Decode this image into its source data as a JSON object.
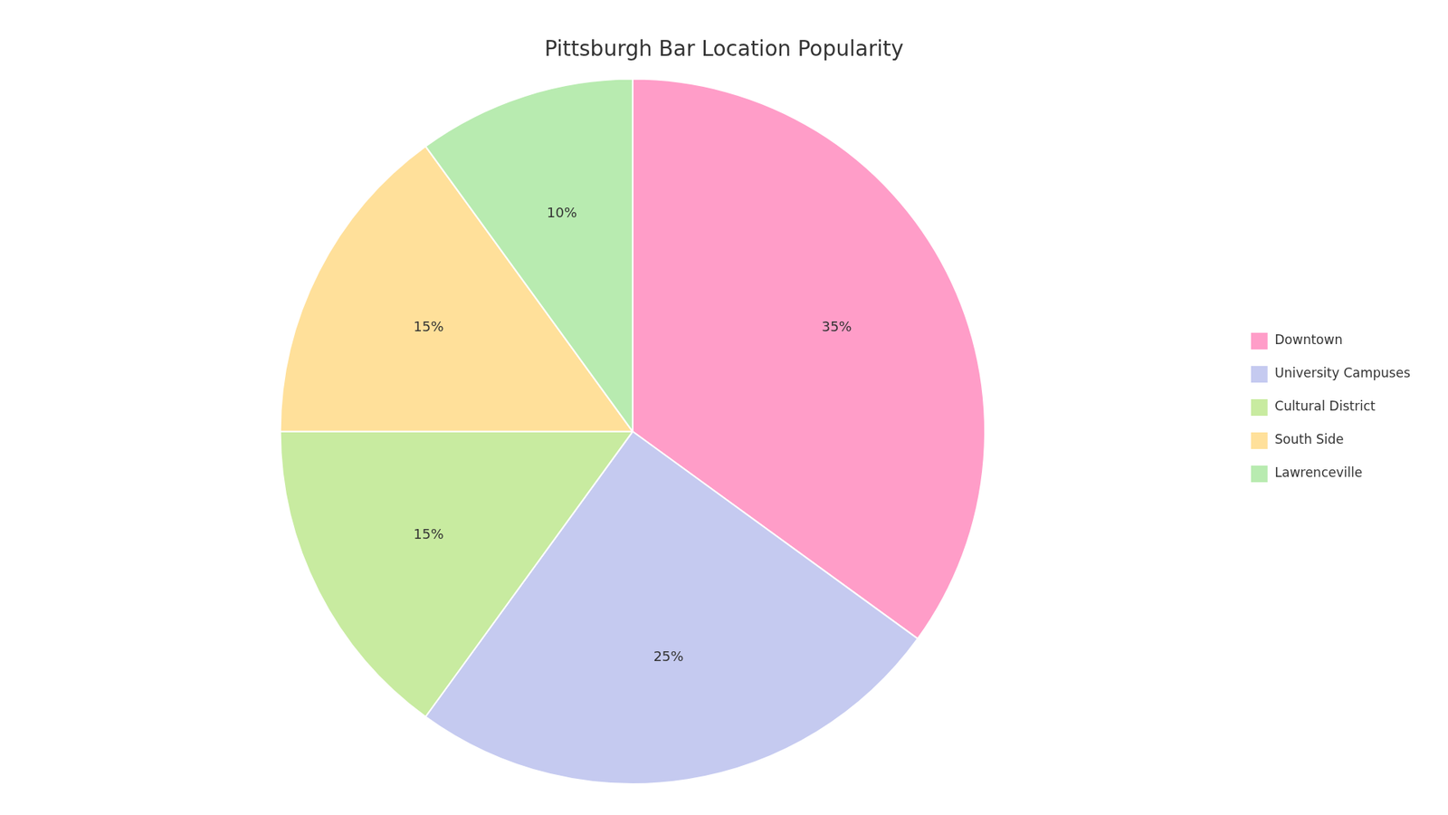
{
  "chart_data": {
    "type": "pie",
    "title": "Pittsburgh Bar Location Popularity",
    "categories": [
      "Downtown",
      "University Campuses",
      "Cultural District",
      "South Side",
      "Lawrenceville"
    ],
    "values": [
      35,
      25,
      15,
      15,
      10
    ],
    "value_labels": [
      "35%",
      "25%",
      "15%",
      "15%",
      "10%"
    ],
    "colors": [
      "#FF9DC8",
      "#C5CAF0",
      "#C8EBA0",
      "#FFE09A",
      "#B8EBB0"
    ],
    "data_labels": true,
    "legend": "right"
  }
}
